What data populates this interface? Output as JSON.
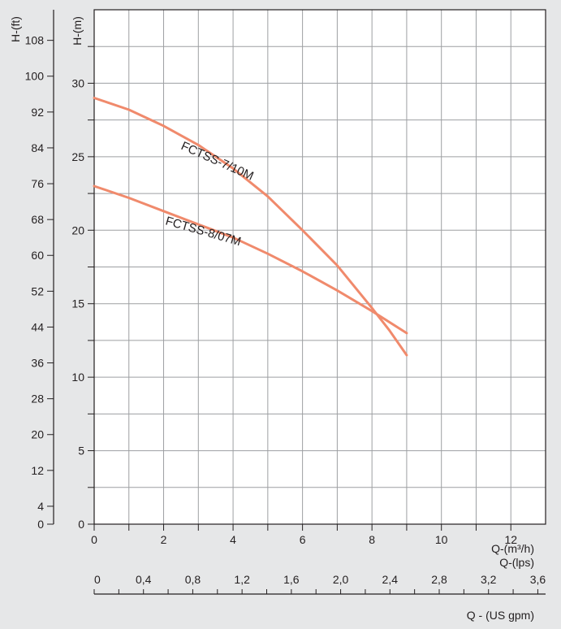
{
  "chart_data": {
    "type": "line",
    "left_axis_label": "H-(ft)",
    "left_axis_ticks": [
      0,
      4,
      12,
      20,
      28,
      36,
      44,
      52,
      60,
      68,
      76,
      84,
      92,
      100,
      108
    ],
    "ylabel": "H-(m)",
    "ylim": [
      0,
      35
    ],
    "y_ticks": [
      0,
      5,
      10,
      15,
      20,
      25,
      30
    ],
    "xlabel": "Q-(m³/h)",
    "xlim": [
      0,
      13
    ],
    "x_ticks": [
      0,
      2,
      4,
      6,
      8,
      10,
      12
    ],
    "secondary_x_label": "Q-(lps)",
    "secondary_x_ticks": [
      "0",
      "0,4",
      "0,8",
      "1,2",
      "1,6",
      "2,0",
      "2,4",
      "2,8",
      "3,2",
      "3,6"
    ],
    "tertiary_x_label": "Q - (US gpm)",
    "grid": true,
    "series": [
      {
        "name": "FCTSS-7/10M",
        "color": "#f08a6c",
        "x": [
          0,
          1,
          2,
          3,
          4,
          5,
          6,
          7,
          8,
          8.5,
          9
        ],
        "y": [
          29,
          28.2,
          27.1,
          25.8,
          24.2,
          22.3,
          20,
          17.6,
          14.7,
          13.2,
          11.5
        ]
      },
      {
        "name": "FCTSS-8/07M",
        "color": "#f08a6c",
        "x": [
          0,
          1,
          2,
          3,
          4,
          5,
          6,
          7,
          8,
          9
        ],
        "y": [
          23,
          22.2,
          21.3,
          20.4,
          19.5,
          18.4,
          17.2,
          15.9,
          14.5,
          13
        ]
      }
    ]
  }
}
